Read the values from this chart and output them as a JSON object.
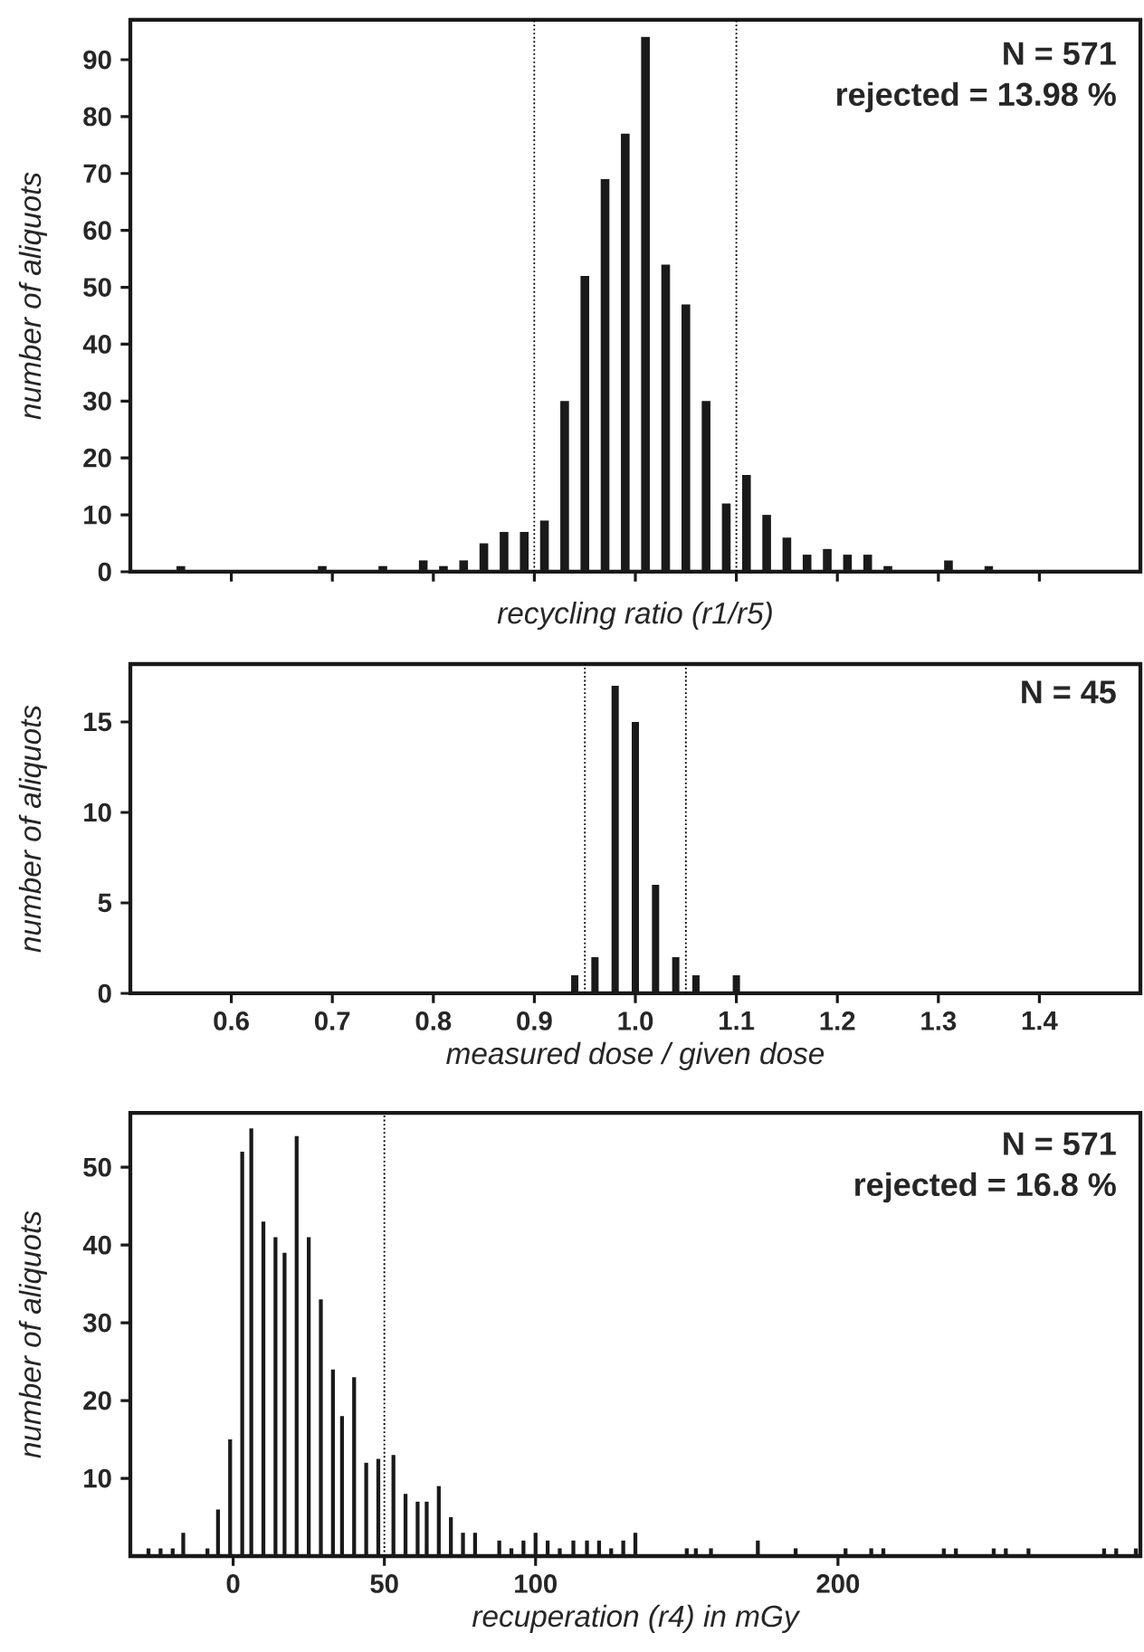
{
  "chart_data": [
    {
      "type": "bar",
      "xlabel": "recycling ratio (r1/r5)",
      "ylabel": "number of aliquots",
      "annotations": [
        "N = 571",
        "rejected = 13.98 %"
      ],
      "color": "#1a1a1a",
      "x": [
        0.55,
        0.69,
        0.75,
        0.79,
        0.81,
        0.83,
        0.85,
        0.87,
        0.89,
        0.91,
        0.93,
        0.95,
        0.97,
        0.99,
        1.01,
        1.03,
        1.05,
        1.07,
        1.09,
        1.11,
        1.13,
        1.15,
        1.17,
        1.19,
        1.21,
        1.23,
        1.25,
        1.31,
        1.35
      ],
      "values": [
        1,
        1,
        1,
        2,
        1,
        2,
        5,
        7,
        7,
        9,
        30,
        52,
        69,
        77,
        94,
        54,
        47,
        30,
        12,
        17,
        10,
        6,
        3,
        4,
        3,
        3,
        1,
        2,
        1
      ],
      "xlim": [
        0.5,
        1.5
      ],
      "ylim": [
        0,
        97
      ],
      "xticks": [
        {
          "value": 0.6,
          "label": null
        },
        {
          "value": 0.7,
          "label": null
        },
        {
          "value": 0.8,
          "label": null
        },
        {
          "value": 0.9,
          "label": null
        },
        {
          "value": 1.0,
          "label": null
        },
        {
          "value": 1.1,
          "label": null
        },
        {
          "value": 1.2,
          "label": null
        },
        {
          "value": 1.3,
          "label": null
        },
        {
          "value": 1.4,
          "label": null
        }
      ],
      "yticks": [
        0,
        10,
        20,
        30,
        40,
        50,
        60,
        70,
        80,
        90
      ],
      "tick_labels": "y",
      "ref_lines": [
        {
          "axis": "x",
          "value": 0.9,
          "line_style": "dotted"
        },
        {
          "axis": "x",
          "value": 1.1,
          "line_style": "dotted"
        }
      ]
    },
    {
      "type": "bar",
      "xlabel": "measured dose / given dose",
      "ylabel": "number of aliquots",
      "annotations": [
        "N = 45"
      ],
      "color": "#1a1a1a",
      "x": [
        0.94,
        0.96,
        0.98,
        1.0,
        1.02,
        1.04,
        1.06,
        1.1
      ],
      "values": [
        1,
        2,
        17,
        15,
        6,
        2,
        1,
        1
      ],
      "xlim": [
        0.5,
        1.5
      ],
      "ylim": [
        0,
        18.2
      ],
      "xticks": [
        {
          "value": 0.6,
          "label": "0.6"
        },
        {
          "value": 0.7,
          "label": "0.7"
        },
        {
          "value": 0.8,
          "label": "0.8"
        },
        {
          "value": 0.9,
          "label": "0.9"
        },
        {
          "value": 1.0,
          "label": "1.0"
        },
        {
          "value": 1.1,
          "label": "1.1"
        },
        {
          "value": 1.2,
          "label": "1.2"
        },
        {
          "value": 1.3,
          "label": "1.3"
        },
        {
          "value": 1.4,
          "label": "1.4"
        }
      ],
      "yticks": [
        0,
        5,
        10,
        15
      ],
      "ref_lines": [
        {
          "axis": "x",
          "value": 0.95,
          "line_style": "dotted"
        },
        {
          "axis": "x",
          "value": 1.05,
          "line_style": "dotted"
        }
      ]
    },
    {
      "type": "bar",
      "xlabel": "recuperation (r4) in mGy",
      "ylabel": "number of aliquots",
      "annotations": [
        "N = 571",
        "rejected = 16.8 %"
      ],
      "color": "#1a1a1a",
      "x": [
        -28,
        -24,
        -20,
        -16.5,
        -8.5,
        -5,
        -1,
        3,
        6,
        10,
        14,
        17,
        21,
        25,
        29,
        33,
        36,
        40,
        44,
        48,
        53,
        57,
        61,
        64,
        68,
        72,
        76,
        80,
        88,
        92,
        96,
        100,
        104,
        108,
        112.5,
        117,
        121,
        125,
        129,
        133,
        150,
        153,
        158,
        173.5,
        186,
        202.5,
        211,
        215,
        235,
        239,
        251.5,
        255.5,
        263,
        288,
        292,
        298.5
      ],
      "values": [
        1,
        1,
        1,
        3,
        1,
        6,
        15,
        52,
        55,
        43,
        41,
        39,
        54,
        41,
        33,
        24,
        18,
        23,
        12,
        12.5,
        13,
        8,
        7,
        7,
        9,
        5,
        3,
        3,
        2,
        1,
        2,
        3,
        2,
        1,
        2,
        2,
        2,
        1,
        2,
        3,
        1,
        1,
        1,
        2,
        1,
        1,
        1,
        1,
        1,
        1,
        1,
        1,
        1,
        1,
        1,
        1
      ],
      "xlim": [
        -34,
        300
      ],
      "ylim": [
        0,
        57
      ],
      "xticks": [
        0,
        50,
        100,
        200
      ],
      "yticks": [
        10,
        20,
        30,
        40,
        50
      ],
      "ref_lines": [
        {
          "axis": "x",
          "value": 50,
          "line_style": "dotted"
        }
      ]
    }
  ]
}
